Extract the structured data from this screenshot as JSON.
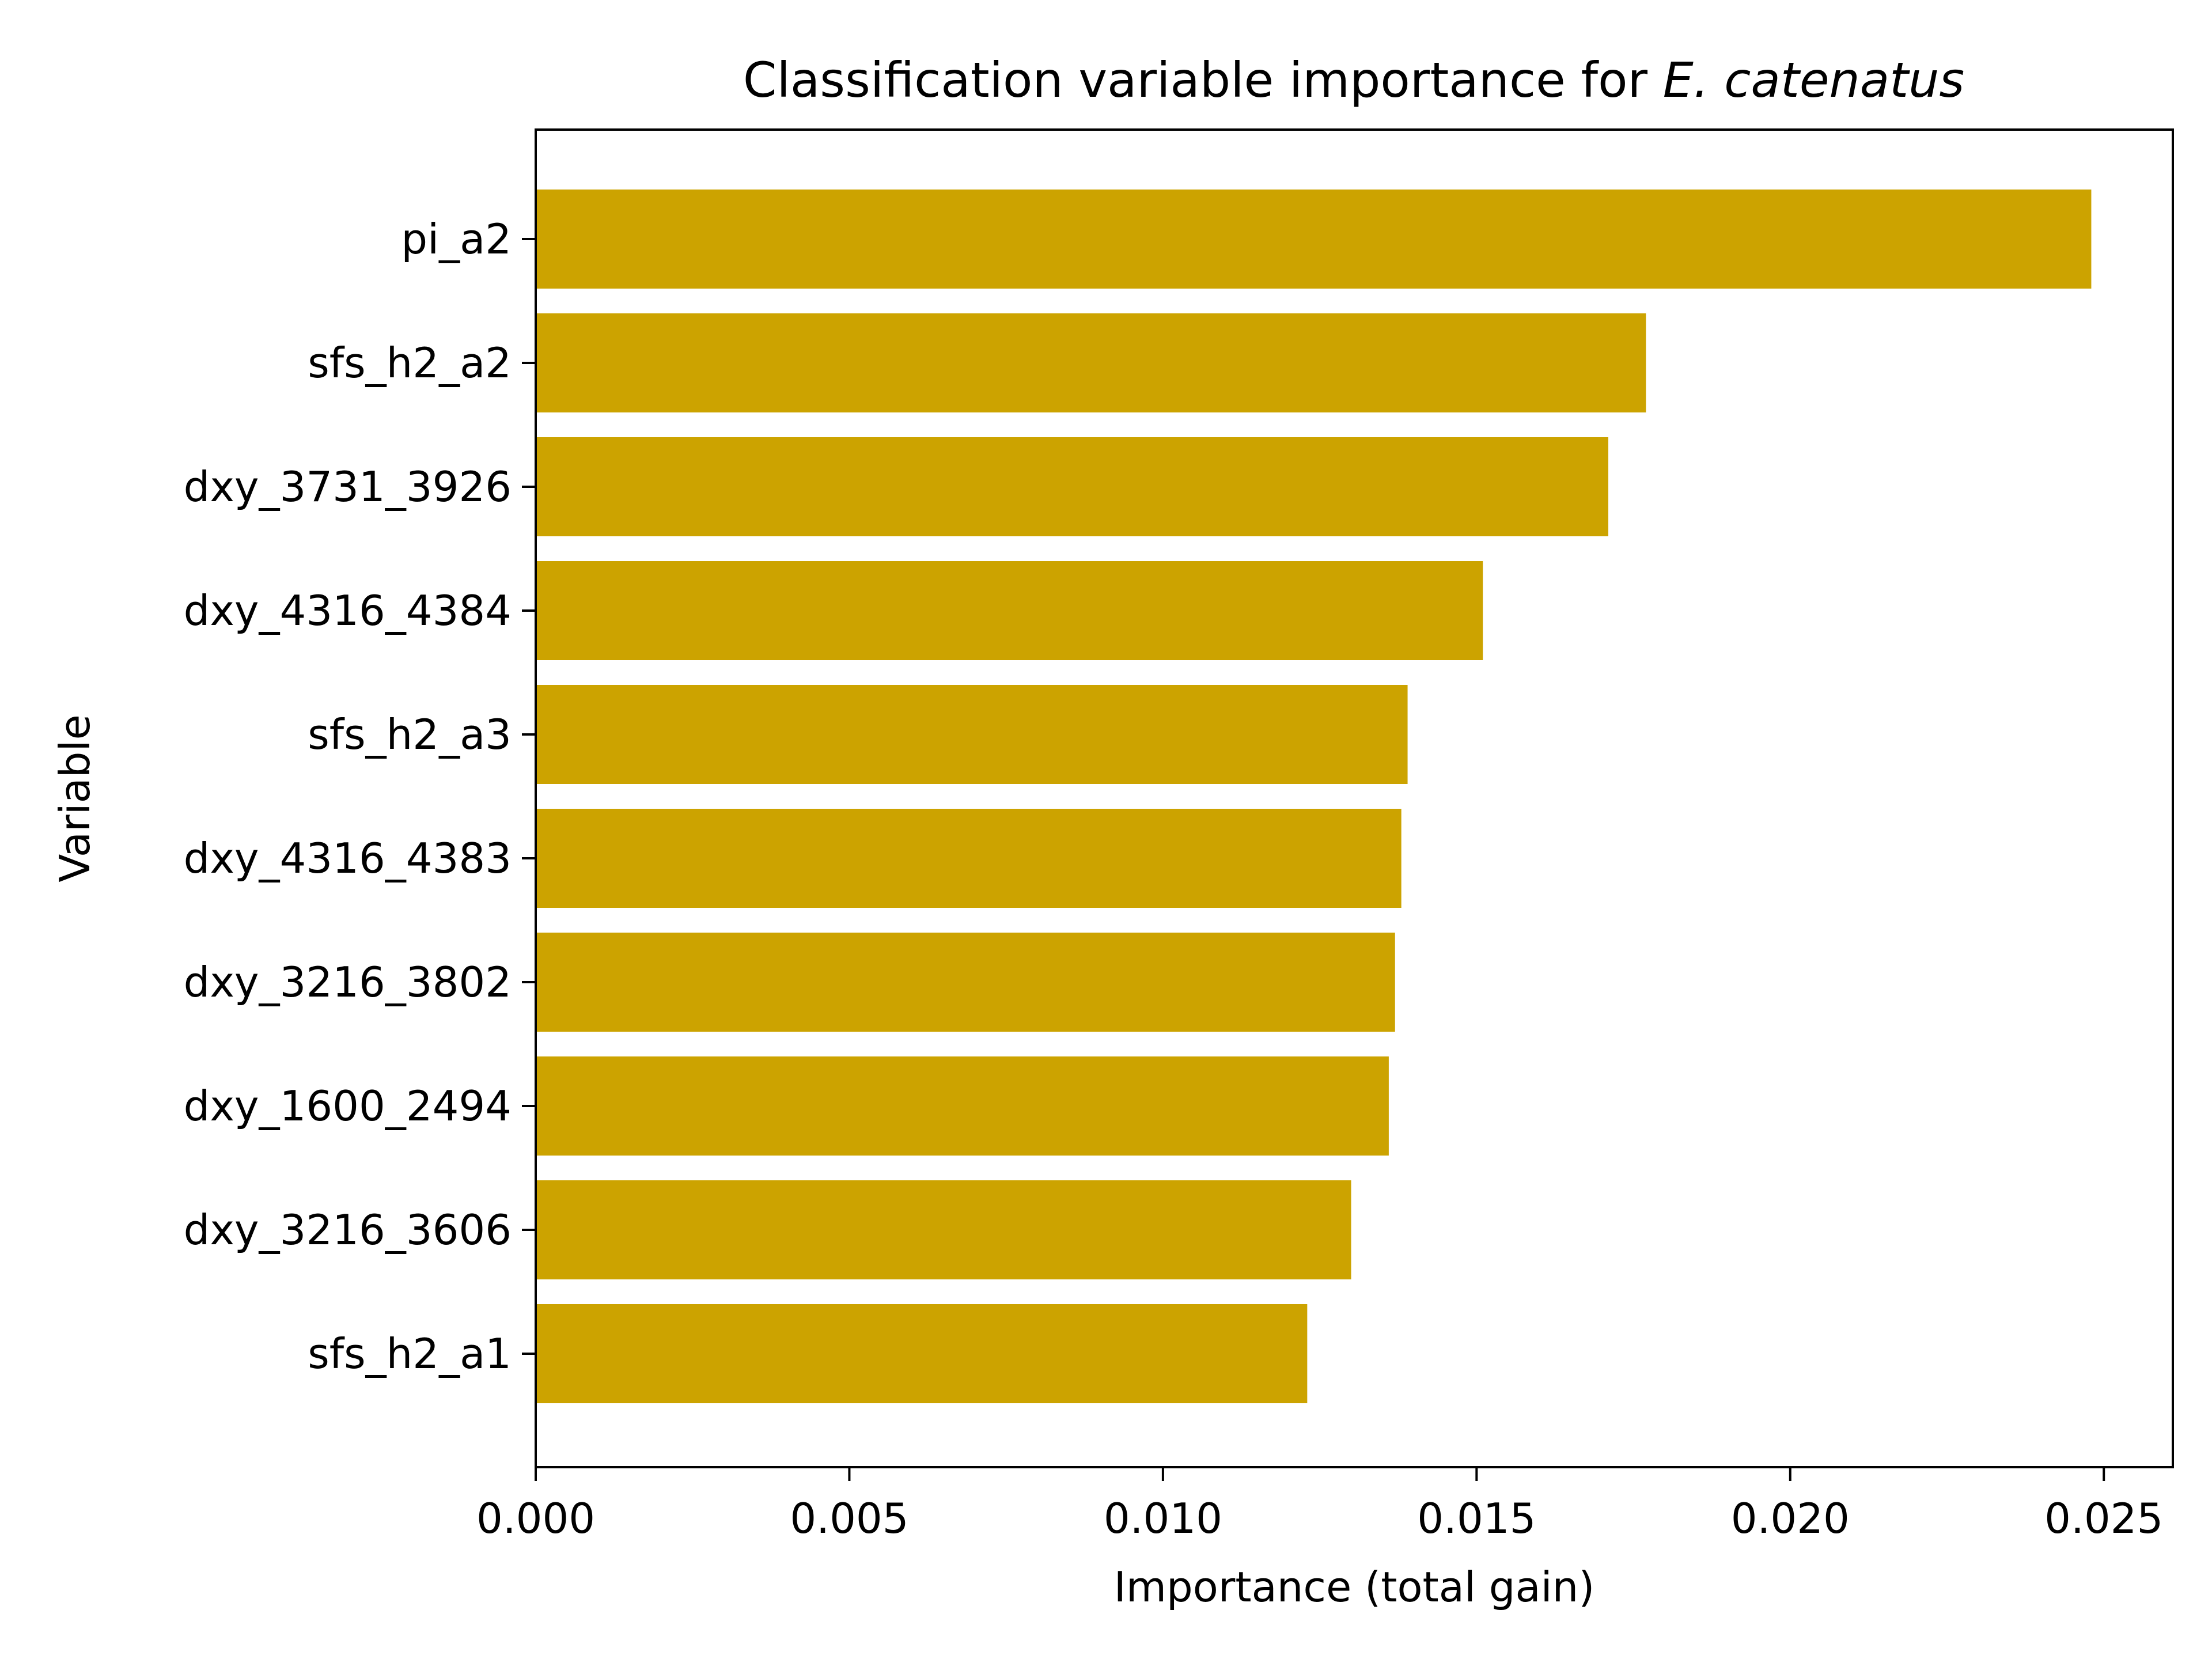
{
  "chart_data": {
    "type": "bar",
    "orientation": "horizontal",
    "title": "Classification variable importance for",
    "title_species": "E. catenatus",
    "xlabel": "Importance (total gain)",
    "ylabel": "Variable",
    "categories": [
      "pi_a2",
      "sfs_h2_a2",
      "dxy_3731_3926",
      "dxy_4316_4384",
      "sfs_h2_a3",
      "dxy_4316_4383",
      "dxy_3216_3802",
      "dxy_1600_2494",
      "dxy_3216_3606",
      "sfs_h2_a1"
    ],
    "values": [
      0.0248,
      0.0177,
      0.0171,
      0.0151,
      0.0139,
      0.0138,
      0.0137,
      0.0136,
      0.013,
      0.0123
    ],
    "xlim": [
      0,
      0.0261
    ],
    "xticks": [
      "0.000",
      "0.005",
      "0.010",
      "0.015",
      "0.020",
      "0.025"
    ],
    "bar_color": "#CCA300",
    "grid": false,
    "legend": "none"
  }
}
